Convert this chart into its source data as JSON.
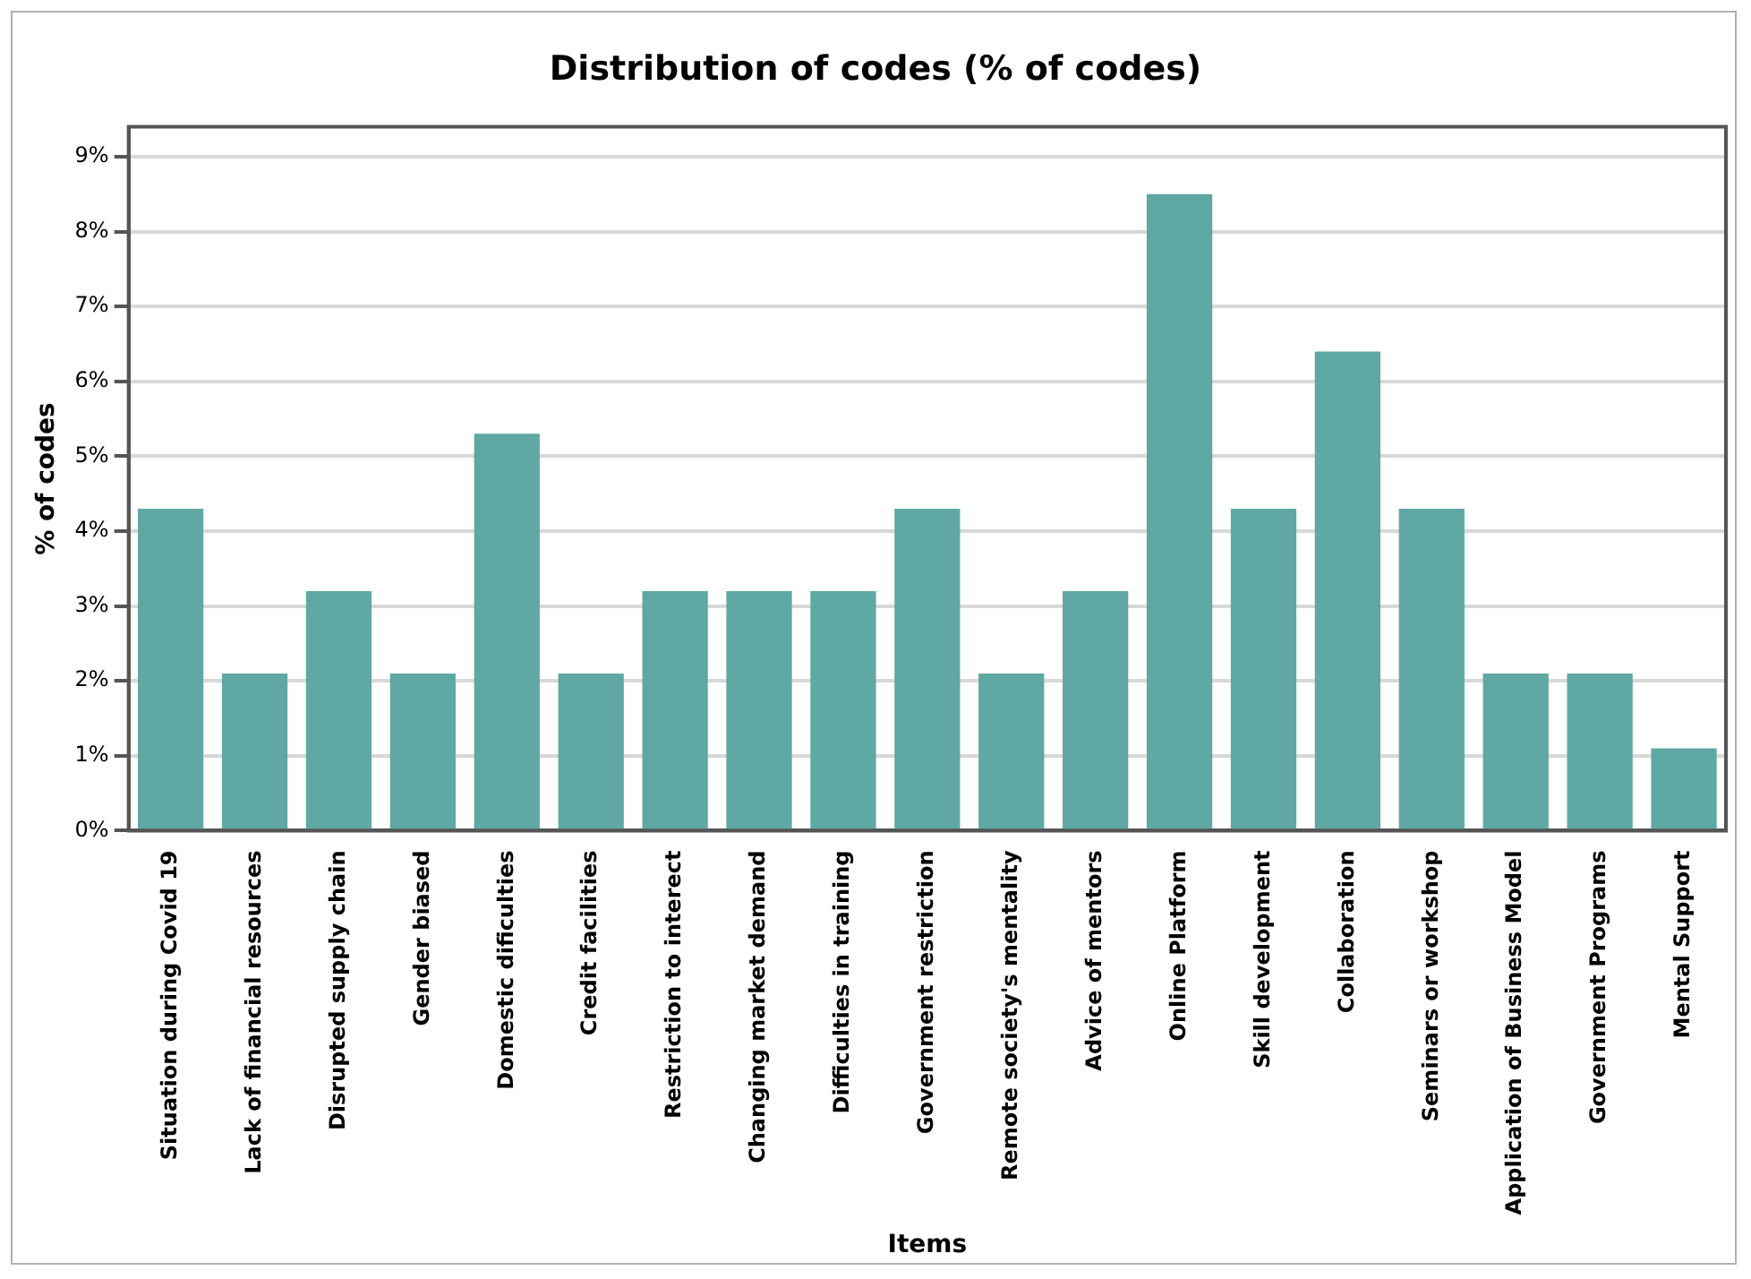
{
  "chart_data": {
    "type": "bar",
    "title": "Distribution of codes (% of codes)",
    "xlabel": "Items",
    "ylabel": "% of codes",
    "categories": [
      "Situation during Covid 19",
      "Lack of financial resources",
      "Disrupted supply chain",
      "Gender biased",
      "Domestic dificulties",
      "Credit facilities",
      "Restriction to interect",
      "Changing market demand",
      "Difficulties in training",
      "Government restriction",
      "Remote society's mentality",
      "Advice of mentors",
      "Online Platform",
      "Skill development",
      "Collaboration",
      "Seminars or workshop",
      "Application of Business Model",
      "Government Programs",
      "Mental Support"
    ],
    "values": [
      4.3,
      2.1,
      3.2,
      2.1,
      5.3,
      2.1,
      3.2,
      3.2,
      3.2,
      4.3,
      2.1,
      3.2,
      8.5,
      4.3,
      6.4,
      4.3,
      2.1,
      2.1,
      1.1
    ],
    "color": "#5fa8a3",
    "ylim": [
      0,
      9.4
    ],
    "yticks": [
      {
        "value": 0,
        "label": "0%"
      },
      {
        "value": 1,
        "label": "1%"
      },
      {
        "value": 2,
        "label": "2%"
      },
      {
        "value": 3,
        "label": "3%"
      },
      {
        "value": 4,
        "label": "4%"
      },
      {
        "value": 5,
        "label": "5%"
      },
      {
        "value": 6,
        "label": "6%"
      },
      {
        "value": 7,
        "label": "7%"
      },
      {
        "value": 8,
        "label": "8%"
      },
      {
        "value": 9,
        "label": "9%"
      }
    ],
    "grid": "y",
    "legend": false
  }
}
